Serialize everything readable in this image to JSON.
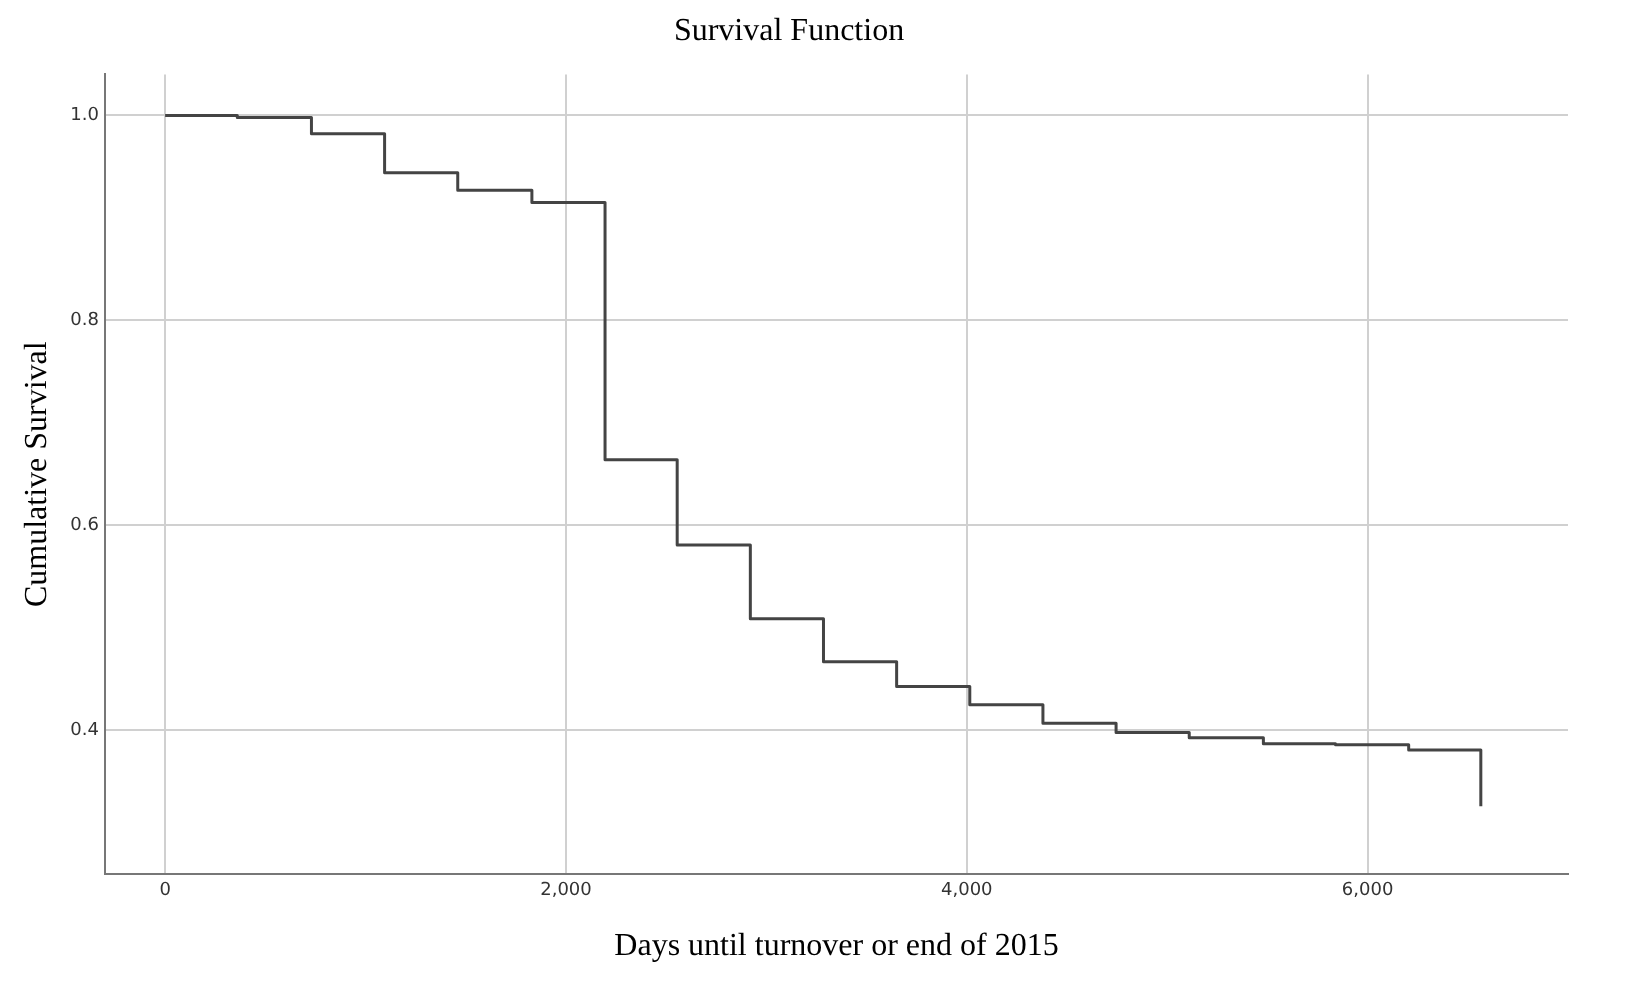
{
  "chart_data": {
    "type": "step",
    "title": "Survival Function",
    "xlabel": "Days until turnover or end of 2015",
    "ylabel": "Cumulative Survival",
    "x": [
      0,
      360,
      730,
      1095,
      1460,
      1830,
      2195,
      2555,
      2920,
      3285,
      3650,
      4015,
      4380,
      4745,
      5110,
      5480,
      5840,
      6205,
      6565
    ],
    "series": [
      {
        "color": "#444444",
        "values": [
          1.0,
          0.998,
          0.982,
          0.944,
          0.927,
          0.915,
          0.664,
          0.581,
          0.509,
          0.467,
          0.443,
          0.425,
          0.407,
          0.398,
          0.393,
          0.387,
          0.386,
          0.381,
          0.326
        ]
      }
    ],
    "xlim": [
      -300,
      7000
    ],
    "ylim": [
      0.26,
      1.04
    ],
    "xticks": [
      0,
      {
        "value": 2000,
        "label": "2,000"
      },
      {
        "value": 4000,
        "label": "4,000"
      },
      {
        "value": 6000,
        "label": "6,000"
      }
    ],
    "yticks": [
      {
        "value": 0.4,
        "label": "0.4"
      },
      {
        "value": 0.6,
        "label": "0.6"
      },
      {
        "value": 0.8,
        "label": "0.8"
      },
      {
        "value": 1.0,
        "label": "1.0"
      }
    ],
    "grid": true,
    "legend": false,
    "marker": "none",
    "line_style": "solid"
  }
}
